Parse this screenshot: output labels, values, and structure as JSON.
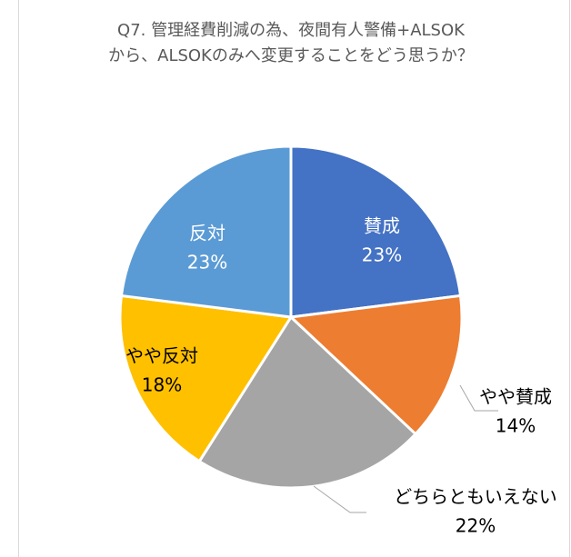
{
  "chart_data": {
    "type": "pie",
    "title": [
      "Q7. 管理経費削減の為、夜間有人警備+ALSOK",
      "から、ALSOKのみへ変更することをどう思うか？"
    ],
    "categories": [
      "賛成",
      "やや賛成",
      "どちらともいえない",
      "やや反対",
      "反対"
    ],
    "values": [
      23,
      14,
      22,
      18,
      23
    ],
    "value_labels": [
      "23%",
      "14%",
      "22%",
      "18%",
      "23%"
    ],
    "colors": [
      "#4472c4",
      "#ed7d31",
      "#a5a5a5",
      "#ffc000",
      "#5b9bd5"
    ]
  }
}
